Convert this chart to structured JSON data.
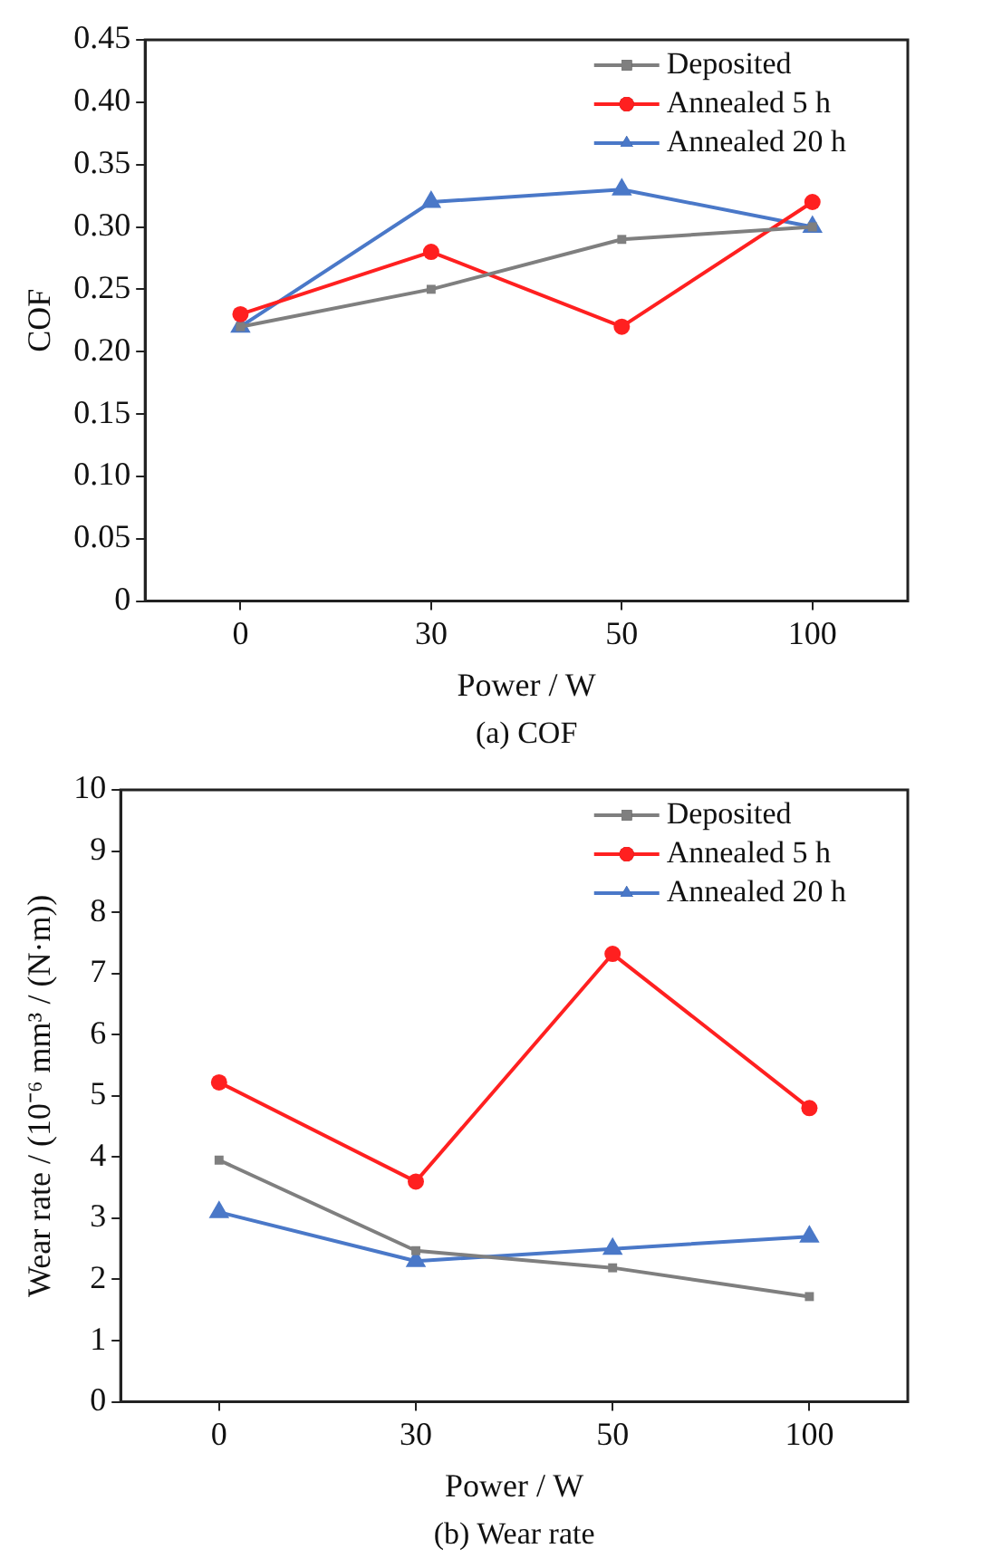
{
  "chart_data": [
    {
      "type": "line",
      "categories": [
        "0",
        "30",
        "50",
        "100"
      ],
      "xlabel": "Power / W",
      "ylabel": "COF",
      "ylim": [
        0,
        0.45
      ],
      "yticks": [
        0,
        0.05,
        {
          "value": 0.1,
          "label": "0.10"
        },
        0.15,
        {
          "value": 0.2,
          "label": "0.20"
        },
        0.25,
        {
          "value": 0.3,
          "label": "0.30"
        },
        0.35,
        {
          "value": 0.4,
          "label": "0.40"
        },
        0.45
      ],
      "grid": false,
      "legend": "top right",
      "annotations": [
        "(a) COF"
      ],
      "series": [
        {
          "name": "Deposited",
          "color": "#7f7f7f",
          "marker": "square",
          "values": [
            0.22,
            0.25,
            0.29,
            0.3
          ]
        },
        {
          "name": "Annealed 5 h",
          "color": "#ff2020",
          "marker": "circle",
          "values": [
            0.23,
            0.28,
            0.22,
            0.32
          ]
        },
        {
          "name": "Annealed 20 h",
          "color": "#4a78c8",
          "marker": "triangle",
          "values": [
            0.22,
            0.32,
            0.33,
            0.3
          ]
        }
      ]
    },
    {
      "type": "line",
      "categories": [
        "0",
        "30",
        "50",
        "100"
      ],
      "xlabel": "Power / W",
      "ylabel": "Wear rate / (10⁻⁶ mm³ / (N·m))",
      "ylim": [
        0,
        10
      ],
      "yticks": [
        0,
        1,
        2,
        3,
        4,
        5,
        6,
        7,
        8,
        9,
        10
      ],
      "grid": false,
      "legend": "top right",
      "annotations": [
        "(b) Wear rate"
      ],
      "series": [
        {
          "name": "Deposited",
          "color": "#7f7f7f",
          "marker": "square",
          "values": [
            3.95,
            2.47,
            2.19,
            1.72
          ]
        },
        {
          "name": "Annealed 5 h",
          "color": "#ff2020",
          "marker": "circle",
          "values": [
            5.22,
            3.6,
            7.32,
            4.8
          ]
        },
        {
          "name": "Annealed 20 h",
          "color": "#4a78c8",
          "marker": "triangle",
          "values": [
            3.1,
            2.3,
            2.5,
            2.7
          ]
        }
      ]
    }
  ]
}
